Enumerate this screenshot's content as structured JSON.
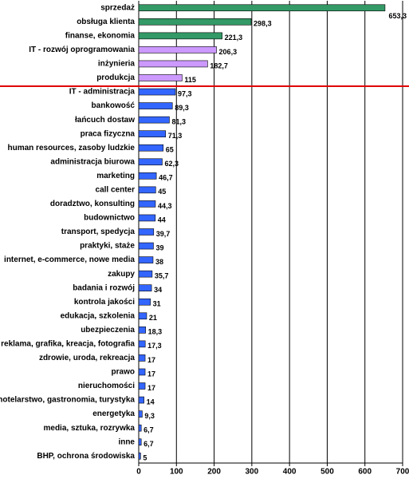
{
  "chart_data": {
    "type": "bar",
    "orientation": "horizontal",
    "categories": [
      "sprzedaż",
      "obsługa klienta",
      "finanse, ekonomia",
      "IT - rozwój oprogramowania",
      "inżynieria",
      "produkcja",
      "IT - administracja",
      "bankowość",
      "łańcuch dostaw",
      "praca fizyczna",
      "human resources, zasoby ludzkie",
      "administracja biurowa",
      "marketing",
      "call center",
      "doradztwo, konsulting",
      "budownictwo",
      "transport, spedycja",
      "praktyki, staże",
      "internet, e-commerce, nowe media",
      "zakupy",
      "badania i rozwój",
      "kontrola jakości",
      "edukacja, szkolenia",
      "ubezpieczenia",
      "reklama, grafika, kreacja, fotografia",
      "zdrowie, uroda, rekreacja",
      "prawo",
      "nieruchomości",
      "hotelarstwo, gastronomia, turystyka",
      "energetyka",
      "media, sztuka, rozrywka",
      "inne",
      "BHP, ochrona środowiska"
    ],
    "values": [
      653.3,
      298.3,
      221.3,
      206.3,
      182.7,
      115,
      97.3,
      89.3,
      81.3,
      71.3,
      65,
      62.3,
      46.7,
      45,
      44.3,
      44,
      39.7,
      39,
      38,
      35.7,
      34,
      31,
      21,
      18.3,
      17.3,
      17,
      17,
      17,
      14,
      9.3,
      6.7,
      6.7,
      5
    ],
    "value_labels": [
      "653,3",
      "298,3",
      "221,3",
      "206,3",
      "182,7",
      "115",
      "97,3",
      "89,3",
      "81,3",
      "71,3",
      "65",
      "62,3",
      "46,7",
      "45",
      "44,3",
      "44",
      "39,7",
      "39",
      "38",
      "35,7",
      "34",
      "31",
      "21",
      "18,3",
      "17,3",
      "17",
      "17",
      "17",
      "14",
      "9,3",
      "6,7",
      "6,7",
      "5"
    ],
    "colors": [
      "#339966",
      "#339966",
      "#339966",
      "#cc99ff",
      "#cc99ff",
      "#cc99ff",
      "#3366ff",
      "#3366ff",
      "#3366ff",
      "#3366ff",
      "#3366ff",
      "#3366ff",
      "#3366ff",
      "#3366ff",
      "#3366ff",
      "#3366ff",
      "#3366ff",
      "#3366ff",
      "#3366ff",
      "#3366ff",
      "#3366ff",
      "#3366ff",
      "#3366ff",
      "#3366ff",
      "#3366ff",
      "#3366ff",
      "#3366ff",
      "#3366ff",
      "#3366ff",
      "#3366ff",
      "#3366ff",
      "#3366ff",
      "#3366ff"
    ],
    "xlim": [
      0,
      700
    ],
    "xticks": [
      0,
      100,
      200,
      300,
      400,
      500,
      600,
      700
    ],
    "grid": true
  }
}
